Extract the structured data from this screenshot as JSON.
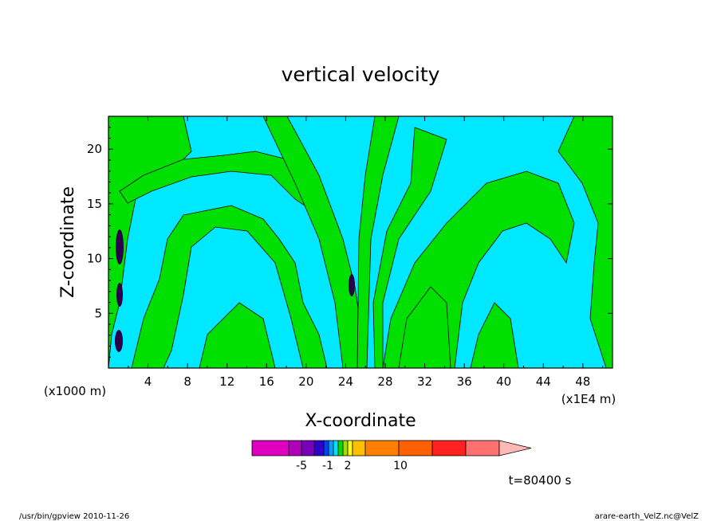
{
  "chart_data": {
    "type": "heatmap",
    "title": "vertical velocity",
    "xlabel": "X-coordinate",
    "ylabel": "Z-coordinate",
    "x_unit": "(x1E4 m)",
    "y_unit": "(x1000 m)",
    "xlim": [
      0,
      51
    ],
    "ylim": [
      0,
      23
    ],
    "x_ticks": [
      4,
      8,
      12,
      16,
      20,
      24,
      28,
      32,
      36,
      40,
      44,
      48
    ],
    "y_ticks": [
      5,
      10,
      15,
      20
    ],
    "colorbar": {
      "labeled_values": [
        "-5",
        "-1",
        "2",
        "10"
      ],
      "colors": [
        "#e000c0",
        "#b000b8",
        "#7800b8",
        "#3000c8",
        "#0040ff",
        "#00a0ff",
        "#00e0ff",
        "#00e000",
        "#a0e000",
        "#ffff00",
        "#ffc000",
        "#ff8000",
        "#ff6000",
        "#ff2020",
        "#ff7070",
        "#ffb8b8"
      ]
    },
    "annotation": "t=80400 s",
    "field_colors": {
      "background_cyan": "#00e8ff",
      "green": "#00e000",
      "dark": "#2a004a"
    }
  },
  "footer": {
    "left": "/usr/bin/gpview   2010-11-26",
    "right": "arare-earth_VelZ.nc@VelZ"
  }
}
